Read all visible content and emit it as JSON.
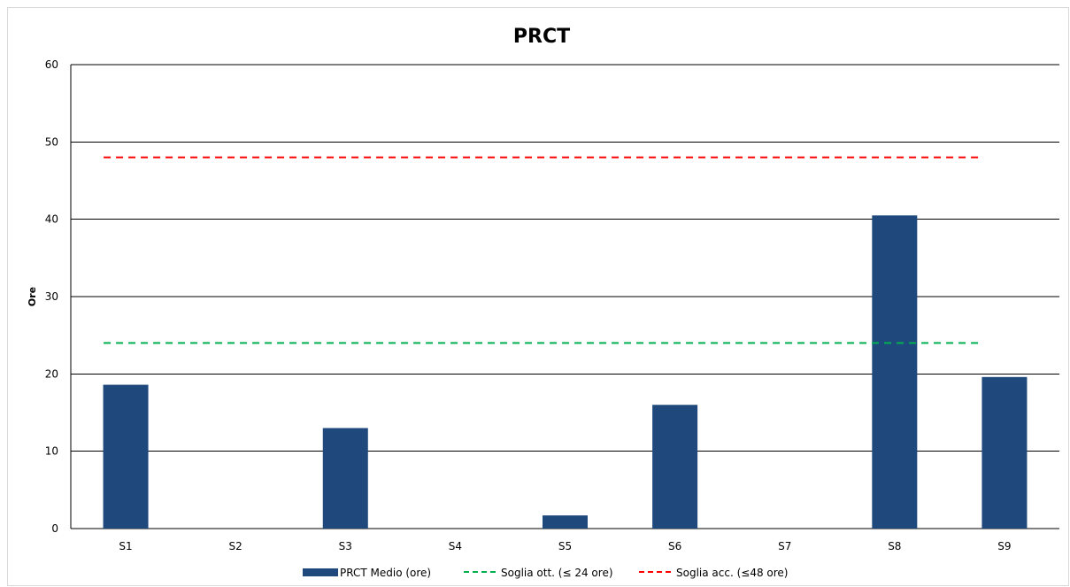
{
  "chart_data": {
    "type": "bar",
    "title": "PRCT",
    "xlabel": "",
    "ylabel": "Ore",
    "ylim": [
      0,
      60
    ],
    "yticks": [
      0,
      10,
      20,
      30,
      40,
      50,
      60
    ],
    "categories": [
      "S1",
      "S2",
      "S3",
      "S4",
      "S5",
      "S6",
      "S7",
      "S8",
      "S9"
    ],
    "series": [
      {
        "name": "PRCT Medio (ore)",
        "kind": "bar",
        "color": "#1f497d",
        "values": [
          18.6,
          null,
          13.0,
          null,
          1.7,
          16.0,
          null,
          40.5,
          19.6
        ]
      },
      {
        "name": "Soglia ott. (≤ 24 ore)",
        "kind": "threshold",
        "color": "#00b050",
        "dash": "dashed",
        "value": 24
      },
      {
        "name": "Soglia acc. (≤48 ore)",
        "kind": "threshold",
        "color": "#ff0000",
        "dash": "dashed",
        "value": 48
      }
    ],
    "grid": true,
    "legend_position": "bottom"
  }
}
